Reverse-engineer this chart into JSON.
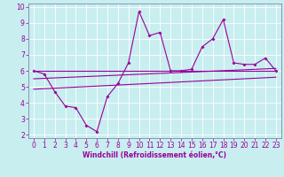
{
  "xlabel": "Windchill (Refroidissement éolien,°C)",
  "background_color": "#c8eef0",
  "grid_color": "#ffffff",
  "line_color": "#990099",
  "spine_color": "#7070a0",
  "xlim": [
    -0.5,
    23.5
  ],
  "ylim": [
    1.8,
    10.2
  ],
  "xticks": [
    0,
    1,
    2,
    3,
    4,
    5,
    6,
    7,
    8,
    9,
    10,
    11,
    12,
    13,
    14,
    15,
    16,
    17,
    18,
    19,
    20,
    21,
    22,
    23
  ],
  "yticks": [
    2,
    3,
    4,
    5,
    6,
    7,
    8,
    9,
    10
  ],
  "series": {
    "line1": {
      "x": [
        0,
        1,
        2,
        3,
        4,
        5,
        6,
        7,
        8,
        9,
        10,
        11,
        12,
        13,
        14,
        15,
        16,
        17,
        18,
        19,
        20,
        21,
        22,
        23
      ],
      "y": [
        6.0,
        5.8,
        4.7,
        3.8,
        3.7,
        2.6,
        2.2,
        4.4,
        5.2,
        6.5,
        9.7,
        8.2,
        8.4,
        6.0,
        6.0,
        6.1,
        7.5,
        8.0,
        9.2,
        6.5,
        6.4,
        6.4,
        6.8,
        6.0
      ]
    },
    "line2": {
      "x": [
        0,
        23
      ],
      "y": [
        6.0,
        6.0
      ]
    },
    "line3": {
      "x": [
        0,
        23
      ],
      "y": [
        5.5,
        6.15
      ]
    },
    "line4": {
      "x": [
        0,
        23
      ],
      "y": [
        4.85,
        5.6
      ]
    }
  },
  "tick_labelsize": 5.5,
  "xlabel_fontsize": 5.5,
  "marker_size": 2.0,
  "linewidth": 0.8
}
